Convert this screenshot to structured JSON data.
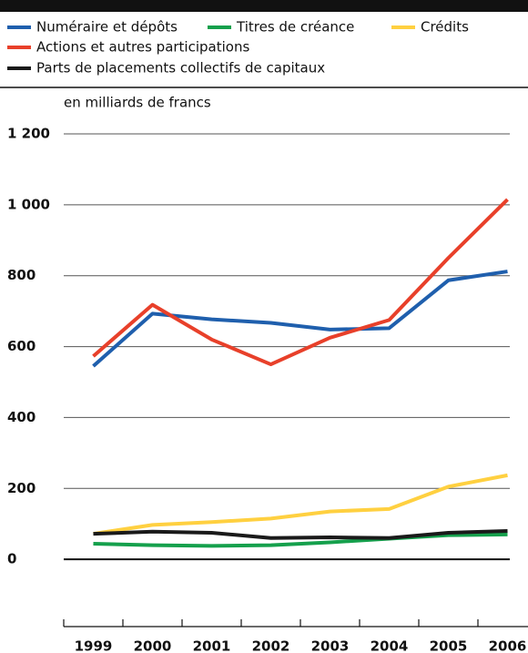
{
  "chart_data": {
    "type": "line",
    "y_label": "en milliards de francs",
    "categories": [
      "1999",
      "2000",
      "2001",
      "2002",
      "2003",
      "2004",
      "2005",
      "2006"
    ],
    "series": [
      {
        "name": "Numéraire et dépôts",
        "color": "#1f5fad",
        "values": [
          545,
          693,
          677,
          667,
          648,
          652,
          787,
          812
        ]
      },
      {
        "name": "Titres de créance",
        "color": "#15a04c",
        "values": [
          44,
          40,
          38,
          40,
          48,
          58,
          68,
          70
        ]
      },
      {
        "name": "Crédits",
        "color": "#ffd040",
        "values": [
          72,
          97,
          105,
          115,
          135,
          142,
          205,
          237
        ]
      },
      {
        "name": "Actions et autres participations",
        "color": "#e8402a",
        "values": [
          573,
          718,
          620,
          550,
          625,
          675,
          850,
          1015
        ]
      },
      {
        "name": "Parts de placements collectifs de capitaux",
        "color": "#1a1a1a",
        "values": [
          72,
          78,
          75,
          60,
          62,
          60,
          75,
          80
        ]
      }
    ],
    "ylim": [
      -200,
      1200
    ],
    "yticks": [
      0,
      200,
      400,
      600,
      800,
      {
        "value": 1000,
        "label": "1 000"
      },
      {
        "value": 1200,
        "label": "1 200"
      }
    ],
    "grid": true
  }
}
